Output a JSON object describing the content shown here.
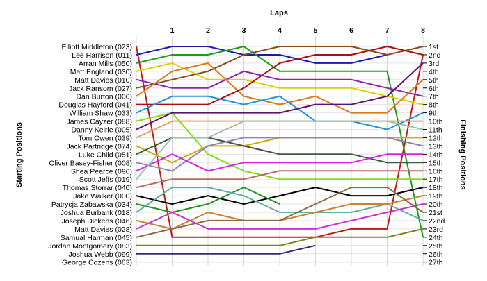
{
  "chart_data": {
    "type": "line",
    "title": "",
    "top_axis_label": "Laps",
    "left_axis_label": "Starting Positions",
    "right_axis_label": "Finishing Positions",
    "laps": [
      "1",
      "2",
      "3",
      "4",
      "5",
      "6",
      "7",
      "8"
    ],
    "finish_labels": [
      "1st",
      "2nd",
      "3rd",
      "4th",
      "5th",
      "6th",
      "7th",
      "8th",
      "9th",
      "10th",
      "11th",
      "12th",
      "13th",
      "14th",
      "15th",
      "16th",
      "17th",
      "18th",
      "19th",
      "20th",
      "21st",
      "22nd",
      "23rd",
      "24th",
      "25th",
      "26th",
      "27th"
    ],
    "grid": true,
    "series": [
      {
        "name": "Elliott Middleton (023)",
        "color": "#c01818",
        "positions": [
          1,
          24,
          24,
          24,
          24,
          24,
          23,
          23,
          2
        ]
      },
      {
        "name": "Lee Harrison (011)",
        "color": "#1a1ab0",
        "positions": [
          2,
          1,
          1,
          2,
          2,
          3,
          3,
          2,
          null
        ]
      },
      {
        "name": "Arran Mills (050)",
        "color": "#1e9a1e",
        "positions": [
          3,
          2,
          2,
          1,
          4,
          4,
          4,
          4,
          24
        ]
      },
      {
        "name": "Matt England (030)",
        "color": "#e0d000",
        "positions": [
          4,
          3,
          5,
          5,
          6,
          6,
          6,
          7,
          8
        ]
      },
      {
        "name": "Matt Davies (010)",
        "color": "#9020b0",
        "positions": [
          5,
          6,
          6,
          4,
          5,
          5,
          5,
          6,
          7
        ]
      },
      {
        "name": "Jack Ransom (027)",
        "color": "#8a4a20",
        "positions": [
          6,
          5,
          4,
          2,
          1,
          1,
          1,
          2,
          1
        ]
      },
      {
        "name": "Dan Burton (006)",
        "color": "#e07818",
        "positions": [
          7,
          4,
          3,
          7,
          8,
          7,
          9,
          9,
          5
        ]
      },
      {
        "name": "Douglas Hayford (041)",
        "color": "#aa1010",
        "positions": [
          8,
          8,
          8,
          6,
          3,
          2,
          2,
          1,
          2
        ]
      },
      {
        "name": "William Shaw (033)",
        "color": "#2090e0",
        "positions": [
          9,
          7,
          7,
          8,
          7,
          10,
          10,
          11,
          9
        ]
      },
      {
        "name": "James Cayzer (088)",
        "color": "#80e018",
        "positions": [
          10,
          9,
          14,
          16,
          17,
          17,
          17,
          17,
          17
        ]
      },
      {
        "name": "Danny Keirle (005)",
        "color": "#601070",
        "positions": [
          11,
          9,
          9,
          9,
          9,
          8,
          8,
          7,
          3
        ]
      },
      {
        "name": "Tom Owen (039)",
        "color": "#e8a060",
        "positions": [
          12,
          10,
          10,
          10,
          10,
          10,
          10,
          10,
          10
        ]
      },
      {
        "name": "Jack Partridge (074)",
        "color": "#c8b000",
        "positions": [
          13,
          15,
          13,
          13,
          12,
          12,
          12,
          12,
          12
        ]
      },
      {
        "name": "Luke Child (051)",
        "color": "#405a40",
        "positions": [
          14,
          12,
          12,
          13,
          14,
          14,
          14,
          15,
          15
        ]
      },
      {
        "name": "Oliver Basey-Fisher (008)",
        "color": "#9080c0",
        "positions": [
          15,
          16,
          13,
          12,
          12,
          12,
          12,
          12,
          13
        ]
      },
      {
        "name": "Shea Pearce (096)",
        "color": "#e020e0",
        "positions": [
          16,
          14,
          16,
          15,
          15,
          15,
          15,
          14,
          14
        ]
      },
      {
        "name": "Scott Jeffs (019)",
        "color": "#a0c0b0",
        "positions": [
          17,
          12,
          12,
          10,
          10,
          10,
          10,
          10,
          11
        ]
      },
      {
        "name": "Thomas Storrar (040)",
        "color": "#c06858",
        "positions": [
          18,
          17,
          17,
          17,
          16,
          16,
          16,
          16,
          16
        ]
      },
      {
        "name": "Jake Walker (000)",
        "color": "#000000",
        "positions": [
          19,
          20,
          19,
          20,
          19,
          18,
          19,
          19,
          18
        ]
      },
      {
        "name": "Patrycja Zabawska (034)",
        "color": "#209020",
        "positions": [
          20,
          21,
          20,
          18,
          20,
          null,
          null,
          null,
          null
        ]
      },
      {
        "name": "Joshua Burbank (018)",
        "color": "#60b0a0",
        "positions": [
          21,
          18,
          18,
          19,
          21,
          21,
          21,
          20,
          22
        ]
      },
      {
        "name": "Joseph Dickens (046)",
        "color": "#cc8030",
        "positions": [
          22,
          23,
          21,
          22,
          22,
          21,
          20,
          20,
          19
        ]
      },
      {
        "name": "Matt Davies (028)",
        "color": "#d030d0",
        "positions": [
          23,
          21,
          23,
          23,
          23,
          23,
          22,
          21,
          20
        ]
      },
      {
        "name": "Samual Harman (045)",
        "color": "#8a6a40",
        "positions": [
          24,
          23,
          22,
          22,
          22,
          20,
          18,
          18,
          21
        ]
      },
      {
        "name": "Jordan Montgomery (083)",
        "color": "#808020",
        "positions": [
          25,
          25,
          25,
          25,
          25,
          24,
          24,
          24,
          23
        ]
      },
      {
        "name": "Joshua Webb (099)",
        "color": "#303070",
        "positions": [
          26,
          26,
          26,
          26,
          26,
          25,
          null,
          null,
          null
        ]
      },
      {
        "name": "George Cozens (063)",
        "color": "#e8e8f0",
        "positions": [
          27,
          27,
          27,
          27,
          27,
          27,
          27,
          27,
          27
        ]
      }
    ]
  }
}
